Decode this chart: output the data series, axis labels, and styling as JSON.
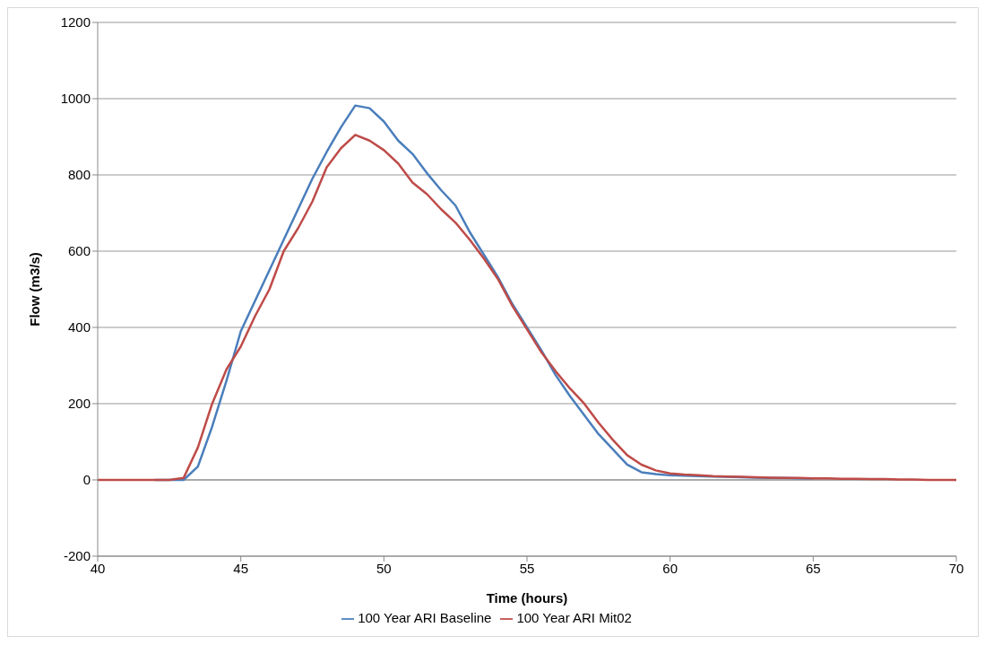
{
  "chart_data": {
    "type": "line",
    "xlabel": "Time (hours)",
    "ylabel": "Flow (m3/s)",
    "x": [
      40,
      40.5,
      41,
      41.5,
      42,
      42.5,
      43,
      43.5,
      44,
      44.5,
      45,
      45.5,
      46,
      46.5,
      47,
      47.5,
      48,
      48.5,
      49,
      49.5,
      50,
      50.5,
      51,
      51.5,
      52,
      52.5,
      53,
      53.5,
      54,
      54.5,
      55,
      55.5,
      56,
      56.5,
      57,
      57.5,
      58,
      58.5,
      59,
      59.5,
      60,
      60.5,
      61,
      61.5,
      62,
      62.5,
      63,
      63.5,
      64,
      64.5,
      65,
      65.5,
      66,
      66.5,
      67,
      67.5,
      68,
      68.5,
      69,
      69.5,
      70
    ],
    "series": [
      {
        "name": "100 Year ARI Baseline",
        "color": "#4a7ebb",
        "values": [
          null,
          null,
          null,
          null,
          0,
          0,
          0,
          35,
          140,
          260,
          390,
          470,
          550,
          630,
          710,
          790,
          860,
          925,
          982,
          975,
          940,
          890,
          855,
          805,
          760,
          720,
          650,
          590,
          530,
          460,
          400,
          340,
          275,
          220,
          170,
          120,
          80,
          40,
          20,
          15,
          12,
          11,
          10,
          9,
          8,
          7,
          6,
          5,
          5,
          4,
          4,
          null,
          null,
          null,
          null,
          null,
          null,
          null,
          null,
          null,
          null
        ]
      },
      {
        "name": "100 Year ARI Mit02",
        "color": "#be4b48",
        "values": [
          0,
          0,
          0,
          0,
          0,
          0,
          5,
          85,
          200,
          290,
          350,
          430,
          500,
          600,
          660,
          730,
          820,
          870,
          905,
          890,
          865,
          830,
          780,
          750,
          710,
          675,
          630,
          580,
          525,
          455,
          395,
          335,
          285,
          240,
          200,
          150,
          105,
          65,
          40,
          25,
          17,
          14,
          12,
          10,
          9,
          8,
          7,
          6,
          5,
          5,
          4,
          4,
          3,
          3,
          2,
          2,
          1,
          1,
          0,
          0,
          0
        ]
      }
    ],
    "xlim": [
      40,
      70
    ],
    "xticks": [
      40,
      45,
      50,
      55,
      60,
      65,
      70
    ],
    "ylim": [
      -200,
      1200
    ],
    "yticks": [
      -200,
      0,
      200,
      400,
      600,
      800,
      1000,
      1200
    ],
    "grid": "y",
    "legend": "bottom",
    "marker": "none",
    "line_style": "solid"
  }
}
